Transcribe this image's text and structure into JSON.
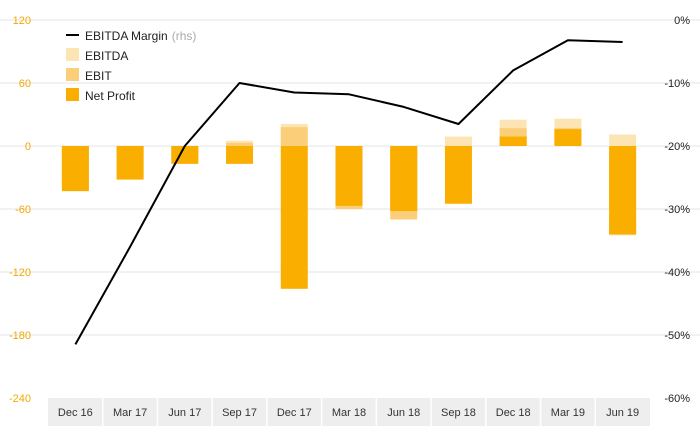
{
  "chart_data": {
    "type": "bar",
    "categories": [
      "Dec 16",
      "Mar 17",
      "Jun 17",
      "Sep 17",
      "Dec 17",
      "Mar 18",
      "Jun 18",
      "Sep 18",
      "Dec 18",
      "Mar 19",
      "Jun 19"
    ],
    "series": [
      {
        "name": "EBITDA",
        "type": "bar",
        "axis": "left",
        "values": [
          -35,
          -26,
          -12,
          5,
          21,
          -57,
          -62,
          9,
          25,
          26,
          11
        ]
      },
      {
        "name": "EBIT",
        "type": "bar",
        "axis": "left",
        "values": [
          -40,
          -30,
          -15,
          3,
          18,
          -60,
          -70,
          -2,
          17,
          17,
          -85
        ]
      },
      {
        "name": "Net Profit",
        "type": "bar",
        "axis": "left",
        "values": [
          -43,
          -32,
          -17,
          -17,
          -136,
          -57,
          -62,
          -55,
          9,
          16,
          -84
        ]
      },
      {
        "name": "EBITDA Margin",
        "name_suffix": "(rhs)",
        "type": "line",
        "axis": "right",
        "values": [
          -51.5,
          -36,
          -20,
          -10,
          -11.5,
          -11.8,
          -13.8,
          -16.5,
          -8,
          -3.2,
          -3.5
        ]
      }
    ],
    "yaxis_left": {
      "min": -240,
      "max": 120,
      "ticks": [
        "120",
        "60",
        "0",
        "-60",
        "-120",
        "-180",
        "-240"
      ]
    },
    "yaxis_right": {
      "min": -60,
      "max": 0,
      "ticks": [
        "0%",
        "-10%",
        "-20%",
        "-30%",
        "-40%",
        "-50%",
        "-60%"
      ]
    },
    "grid": true,
    "legend_position": "top-left",
    "colors": {
      "EBITDA": "#fde5b3",
      "EBIT": "#fbcf7a",
      "Net Profit": "#f9ae00",
      "EBITDA Margin": "#000000",
      "left_tick": "#f2a900",
      "right_tick": "#222222",
      "category_tick": "#333333",
      "grid": "#e6e6e6",
      "axis_band": "#eeeeee"
    }
  }
}
